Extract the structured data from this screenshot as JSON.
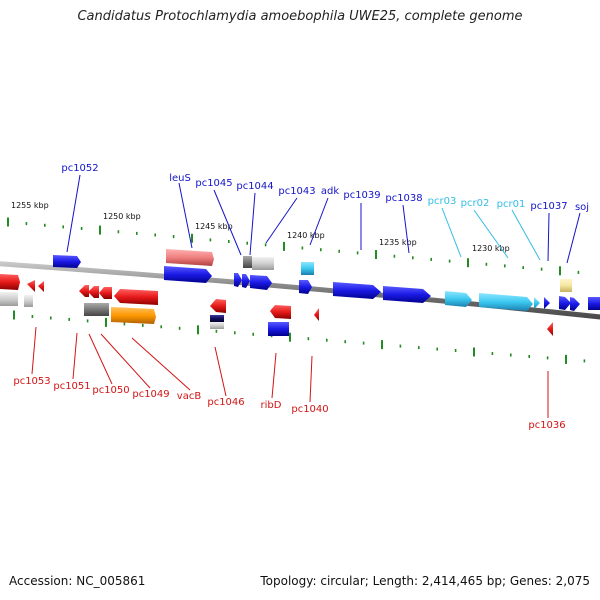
{
  "title": "Candidatus Protochlamydia amoebophila UWE25, complete genome",
  "footer": {
    "accession": "Accession: NC_005861",
    "topology": "Topology: circular; Length: 2,414,465 bp; Genes: 2,075"
  },
  "colors": {
    "forward_gene": "#1a1ae6",
    "reverse_gene": "#e61a1a",
    "rna_gene": "#3cc8f0",
    "pseudo_light_red": "#f08080",
    "orange_gene": "#ff9900",
    "gray_gene": "#777777",
    "pale_yellow_gene": "#f5e6a0",
    "tick": "#228b22",
    "backbone": "#8a8a8a"
  },
  "scale": {
    "unit": "kbp",
    "ticks": [
      {
        "kbp": 1255,
        "label": "1255 kbp"
      },
      {
        "kbp": 1250,
        "label": "1250 kbp"
      },
      {
        "kbp": 1245,
        "label": "1245 kbp"
      },
      {
        "kbp": 1240,
        "label": "1240 kbp"
      },
      {
        "kbp": 1235,
        "label": "1235 kbp"
      },
      {
        "kbp": 1230,
        "label": "1230 kbp"
      }
    ]
  },
  "gene_labels": {
    "forward": [
      "pc1052",
      "leuS",
      "pc1045",
      "pc1044",
      "pc1043",
      "adk",
      "pc1039",
      "pc1038",
      "pcr03",
      "pcr02",
      "pcr01",
      "pc1037",
      "soj"
    ],
    "reverse": [
      "pc1053",
      "pc1051",
      "pc1050",
      "pc1049",
      "vacB",
      "pc1046",
      "ribD",
      "pc1040",
      "pc1036"
    ]
  }
}
